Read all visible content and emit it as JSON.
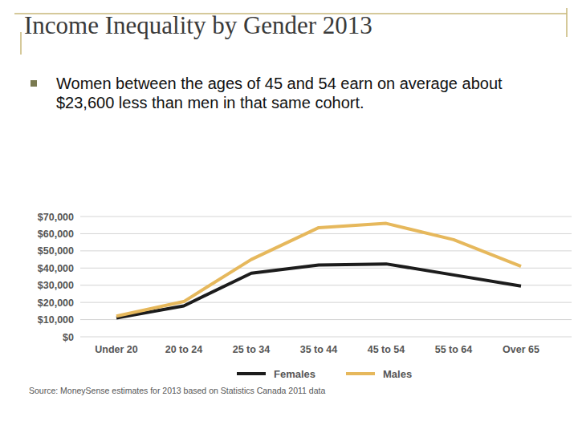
{
  "slide": {
    "title": "Income Inequality by Gender 2013",
    "bullets": [
      "Women between the ages of 45 and 54 earn on average about $23,600 less than men in that same cohort."
    ]
  },
  "chart_data": {
    "type": "line",
    "categories": [
      "Under 20",
      "20 to 24",
      "25 to 34",
      "35 to 44",
      "45 to 54",
      "55 to 64",
      "Over 65"
    ],
    "series": [
      {
        "name": "Females",
        "color": "#1c1c1c",
        "values": [
          11000,
          18000,
          37000,
          41800,
          42400,
          36000,
          29500
        ]
      },
      {
        "name": "Males",
        "color": "#e6b85c",
        "values": [
          12000,
          20500,
          45000,
          63500,
          66000,
          56500,
          41000
        ]
      }
    ],
    "ylim": [
      0,
      70000
    ],
    "yticks": [
      {
        "value": 0,
        "label": "$0"
      },
      {
        "value": 10000,
        "label": "$10,000"
      },
      {
        "value": 20000,
        "label": "$20,000"
      },
      {
        "value": 30000,
        "label": "$30,000"
      },
      {
        "value": 40000,
        "label": "$40,000"
      },
      {
        "value": 50000,
        "label": "$50,000"
      },
      {
        "value": 60000,
        "label": "$60,000"
      },
      {
        "value": 70000,
        "label": "$70,000"
      }
    ],
    "grid": true,
    "legend": "bottom",
    "source": "Source: MoneySense estimates for 2013 based on Statistics Canada 2011 data"
  }
}
